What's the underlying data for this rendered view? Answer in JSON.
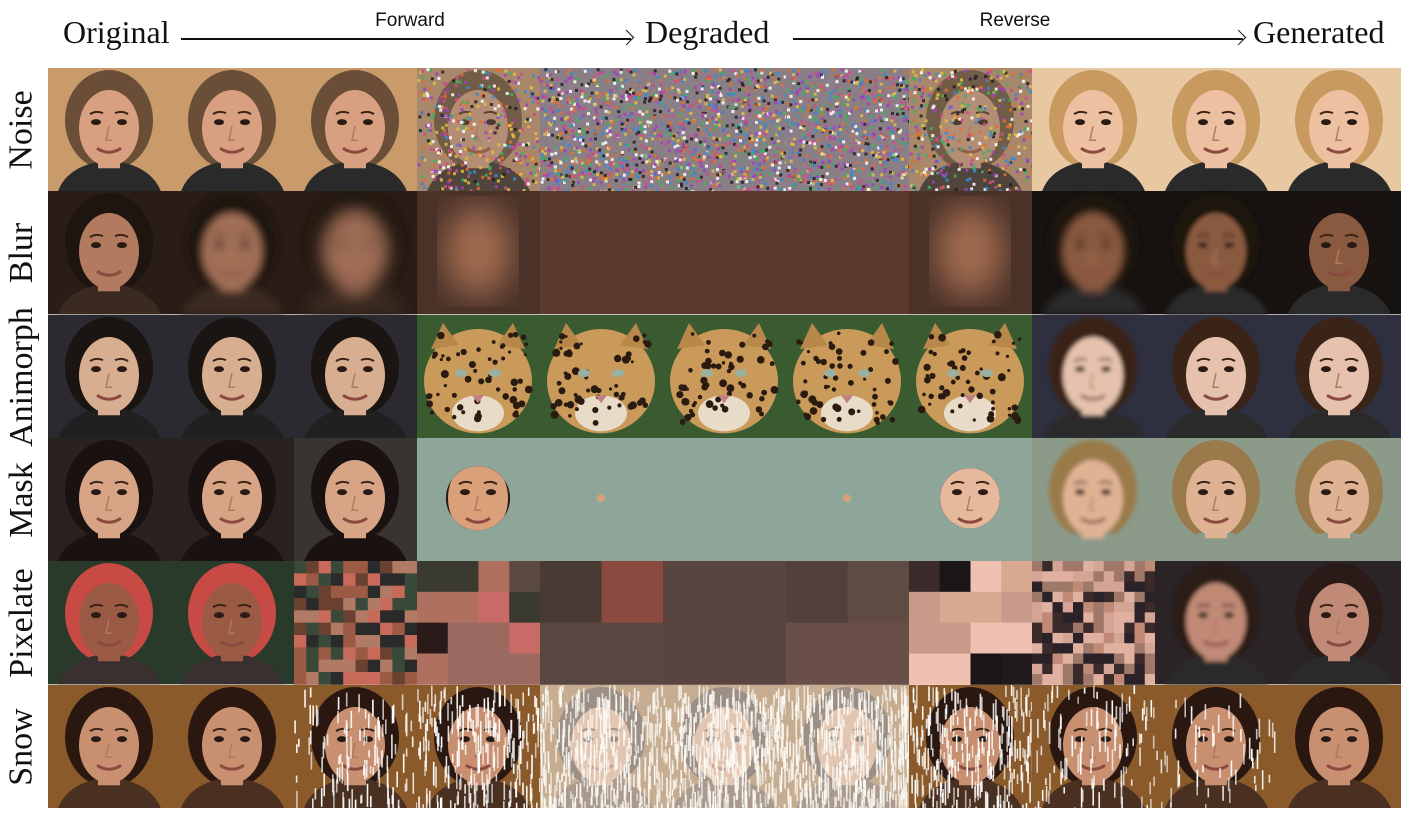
{
  "header": {
    "original": "Original",
    "forward": "Forward",
    "degraded": "Degraded",
    "reverse": "Reverse",
    "generated": "Generated"
  },
  "rows": [
    {
      "label": "Noise"
    },
    {
      "label": "Blur"
    },
    {
      "label": "Animorph"
    },
    {
      "label": "Mask"
    },
    {
      "label": "Pixelate"
    },
    {
      "label": "Snow"
    }
  ]
}
